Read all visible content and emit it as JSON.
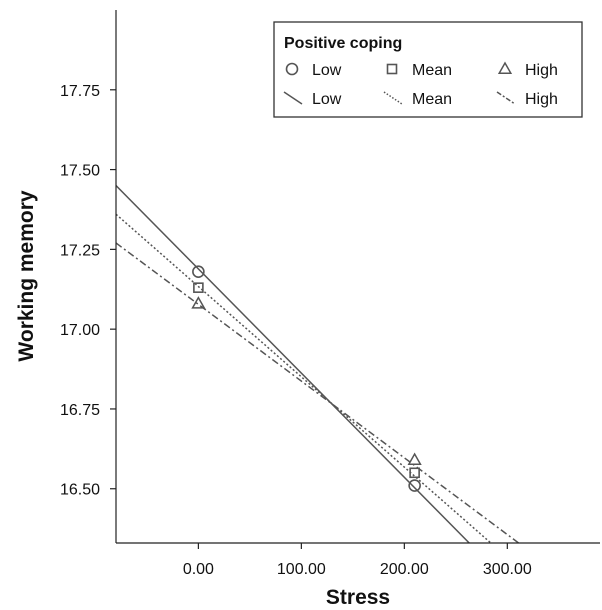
{
  "chart_data": {
    "type": "scatter",
    "xlabel": "Stress",
    "ylabel": "Working memory",
    "xlim": [
      -80,
      390
    ],
    "ylim": [
      16.33,
      18.0
    ],
    "xticks": [
      0,
      100,
      200,
      300
    ],
    "xtick_labels": [
      "0.00",
      "100.00",
      "200.00",
      "300.00"
    ],
    "yticks": [
      16.5,
      16.75,
      17.0,
      17.25,
      17.5,
      17.75
    ],
    "ytick_labels": [
      "16.50",
      "16.75",
      "17.00",
      "17.25",
      "17.50",
      "17.75"
    ],
    "grid": false,
    "legend": {
      "title": "Positive coping",
      "placement": "top-right",
      "point_labels": [
        "Low",
        "Mean",
        "High"
      ],
      "line_labels": [
        "Low",
        "Mean",
        "High"
      ]
    },
    "series": [
      {
        "name": "Low",
        "marker": "circle",
        "line_style": "solid",
        "points": [
          {
            "x": 0,
            "y": 17.18
          },
          {
            "x": 210,
            "y": 16.51
          }
        ],
        "fit_line": [
          {
            "x": -80,
            "y": 17.45
          },
          {
            "x": 263,
            "y": 16.33
          }
        ]
      },
      {
        "name": "Mean",
        "marker": "square",
        "line_style": "dotted",
        "points": [
          {
            "x": 0,
            "y": 17.13
          },
          {
            "x": 210,
            "y": 16.55
          }
        ],
        "fit_line": [
          {
            "x": -80,
            "y": 17.36
          },
          {
            "x": 284,
            "y": 16.33
          }
        ]
      },
      {
        "name": "High",
        "marker": "triangle",
        "line_style": "dashdot",
        "points": [
          {
            "x": 0,
            "y": 17.08
          },
          {
            "x": 210,
            "y": 16.59
          }
        ],
        "fit_line": [
          {
            "x": -80,
            "y": 17.27
          },
          {
            "x": 311,
            "y": 16.33
          }
        ]
      }
    ]
  }
}
